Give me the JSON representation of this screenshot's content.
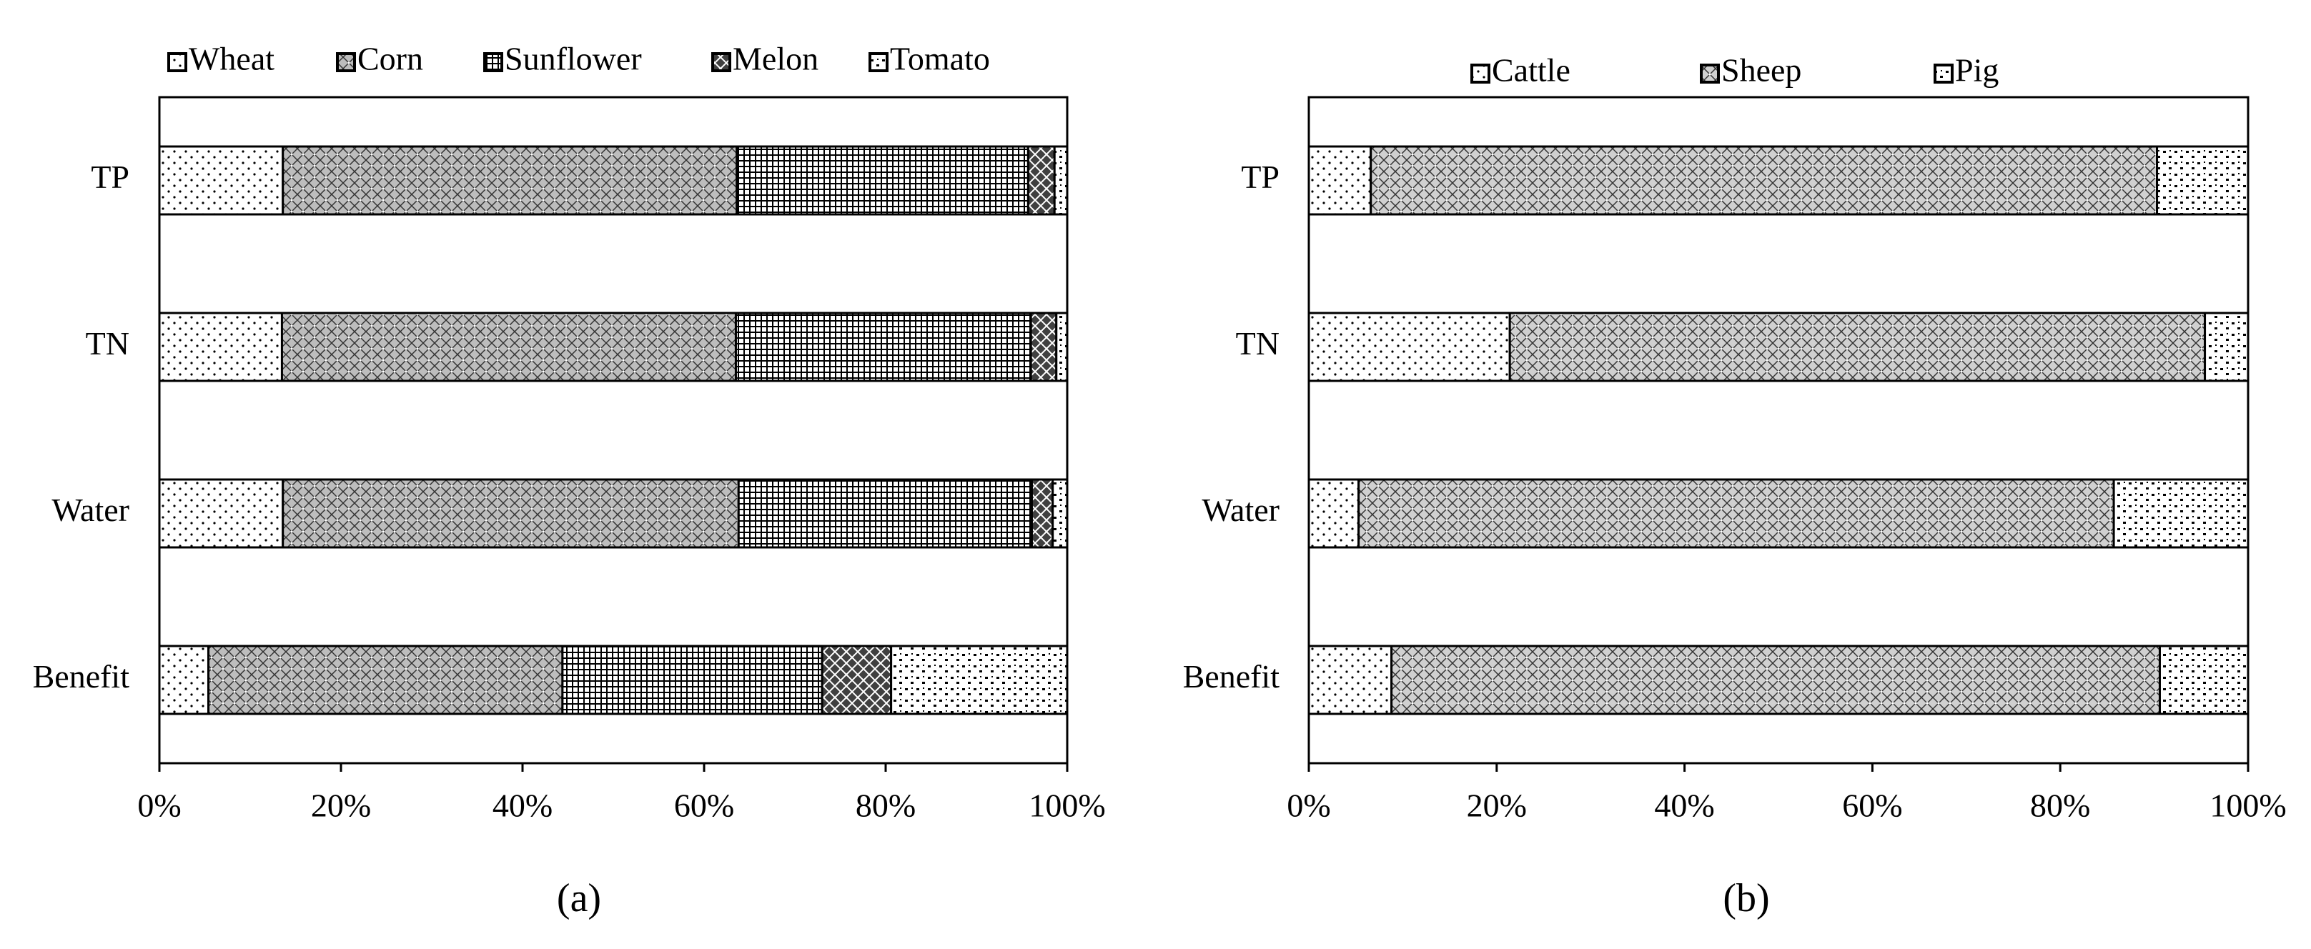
{
  "chart_data": [
    {
      "type": "stacked-bar",
      "panel_label": "(a)",
      "orientation": "horizontal",
      "categories": [
        "TP",
        "TN",
        "Water",
        "Benefit"
      ],
      "series": [
        {
          "name": "Wheat",
          "color": "#ffffff",
          "values": [
            13.6,
            13.5,
            13.6,
            5.4
          ]
        },
        {
          "name": "Corn",
          "color": "#bdbdbd",
          "values": [
            50,
            50,
            50.2,
            39
          ]
        },
        {
          "name": "Sunflower",
          "color": "#ffffff",
          "values": [
            32.1,
            32.5,
            32.3,
            28.6
          ]
        },
        {
          "name": "Melon",
          "color": "#404040",
          "values": [
            2.9,
            2.8,
            2.3,
            7.6
          ]
        },
        {
          "name": "Tomato",
          "color": "#ffffff",
          "values": [
            1.4,
            1.2,
            1.6,
            19.4
          ]
        }
      ],
      "xlim": [
        0,
        100
      ],
      "xticks": [
        {
          "value": 0,
          "label": "0%"
        },
        {
          "value": 20,
          "label": "20%"
        },
        {
          "value": 40,
          "label": "40%"
        },
        {
          "value": 60,
          "label": "60%"
        },
        {
          "value": 80,
          "label": "80%"
        },
        {
          "value": 100,
          "label": "100%"
        }
      ]
    },
    {
      "type": "stacked-bar",
      "panel_label": "(b)",
      "orientation": "horizontal",
      "categories": [
        "TP",
        "TN",
        "Water",
        "Benefit"
      ],
      "series": [
        {
          "name": "Cattle",
          "color": "#ffffff",
          "values": [
            6.6,
            21.4,
            5.3,
            8.8
          ]
        },
        {
          "name": "Sheep",
          "color": "#d0d0d0",
          "values": [
            83.7,
            74,
            80.4,
            81.8
          ]
        },
        {
          "name": "Pig",
          "color": "#ffffff",
          "values": [
            9.7,
            4.6,
            14.3,
            9.4
          ]
        }
      ],
      "xlim": [
        0,
        100
      ],
      "xticks": [
        {
          "value": 0,
          "label": "0%"
        },
        {
          "value": 20,
          "label": "20%"
        },
        {
          "value": 40,
          "label": "40%"
        },
        {
          "value": 60,
          "label": "60%"
        },
        {
          "value": 80,
          "label": "80%"
        },
        {
          "value": 100,
          "label": "100%"
        }
      ]
    }
  ]
}
